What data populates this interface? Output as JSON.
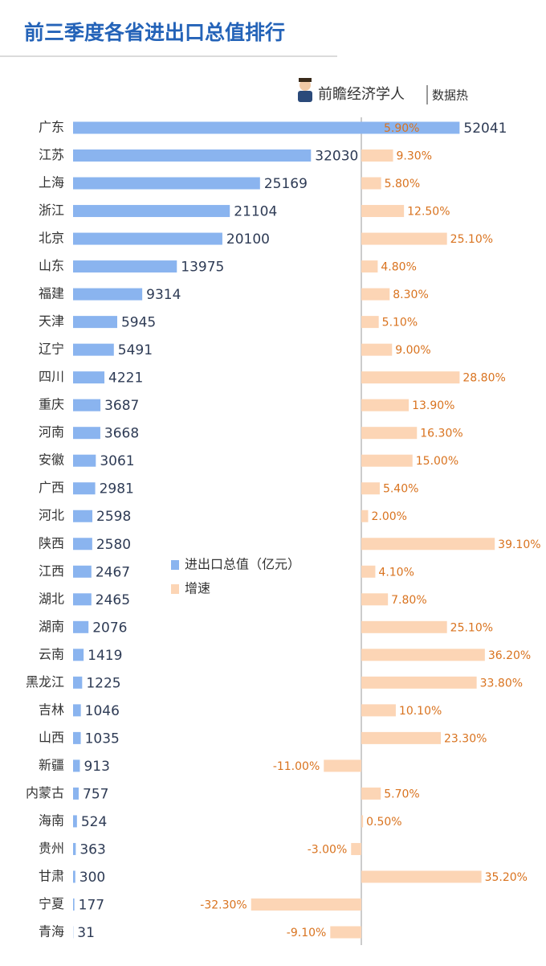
{
  "chart_data": {
    "type": "bar",
    "title": "前三季度各省进出口总值排行",
    "brand": "前瞻经济学人",
    "brand_tag": "数据热",
    "categories": [
      "广东",
      "江苏",
      "上海",
      "浙江",
      "北京",
      "山东",
      "福建",
      "天津",
      "辽宁",
      "四川",
      "重庆",
      "河南",
      "安徽",
      "广西",
      "河北",
      "陕西",
      "江西",
      "湖北",
      "湖南",
      "云南",
      "黑龙江",
      "吉林",
      "山西",
      "新疆",
      "内蒙古",
      "海南",
      "贵州",
      "甘肃",
      "宁夏",
      "青海"
    ],
    "series": [
      {
        "name": "进出口总值（亿元）",
        "color": "#8ab4ef",
        "values": [
          52041,
          32030,
          25169,
          21104,
          20100,
          13975,
          9314,
          5945,
          5491,
          4221,
          3687,
          3668,
          3061,
          2981,
          2598,
          2580,
          2467,
          2465,
          2076,
          1419,
          1225,
          1046,
          1035,
          913,
          757,
          524,
          363,
          300,
          177,
          31
        ]
      },
      {
        "name": "增速",
        "color": "#fcd5b5",
        "axis": "x2",
        "values": [
          5.9,
          9.3,
          5.8,
          12.5,
          25.1,
          4.8,
          8.3,
          5.1,
          9.0,
          28.8,
          13.9,
          16.3,
          15.0,
          5.4,
          2.0,
          39.1,
          4.1,
          7.8,
          25.1,
          36.2,
          33.8,
          10.1,
          23.3,
          -11.0,
          5.7,
          0.5,
          -3.0,
          35.2,
          -32.3,
          -9.1
        ],
        "value_labels": [
          "5.90%",
          "9.30%",
          "5.80%",
          "12.50%",
          "25.10%",
          "4.80%",
          "8.30%",
          "5.10%",
          "9.00%",
          "28.80%",
          "13.90%",
          "16.30%",
          "15.00%",
          "5.40%",
          "2.00%",
          "39.10%",
          "4.10%",
          "7.80%",
          "25.10%",
          "36.20%",
          "33.80%",
          "10.10%",
          "23.30%",
          "-11.00%",
          "5.70%",
          "0.50%",
          "-3.00%",
          "35.20%",
          "-32.30%",
          "-9.10%"
        ]
      }
    ],
    "xlim": [
      0,
      60000
    ],
    "x2lim": [
      -40,
      40
    ]
  }
}
